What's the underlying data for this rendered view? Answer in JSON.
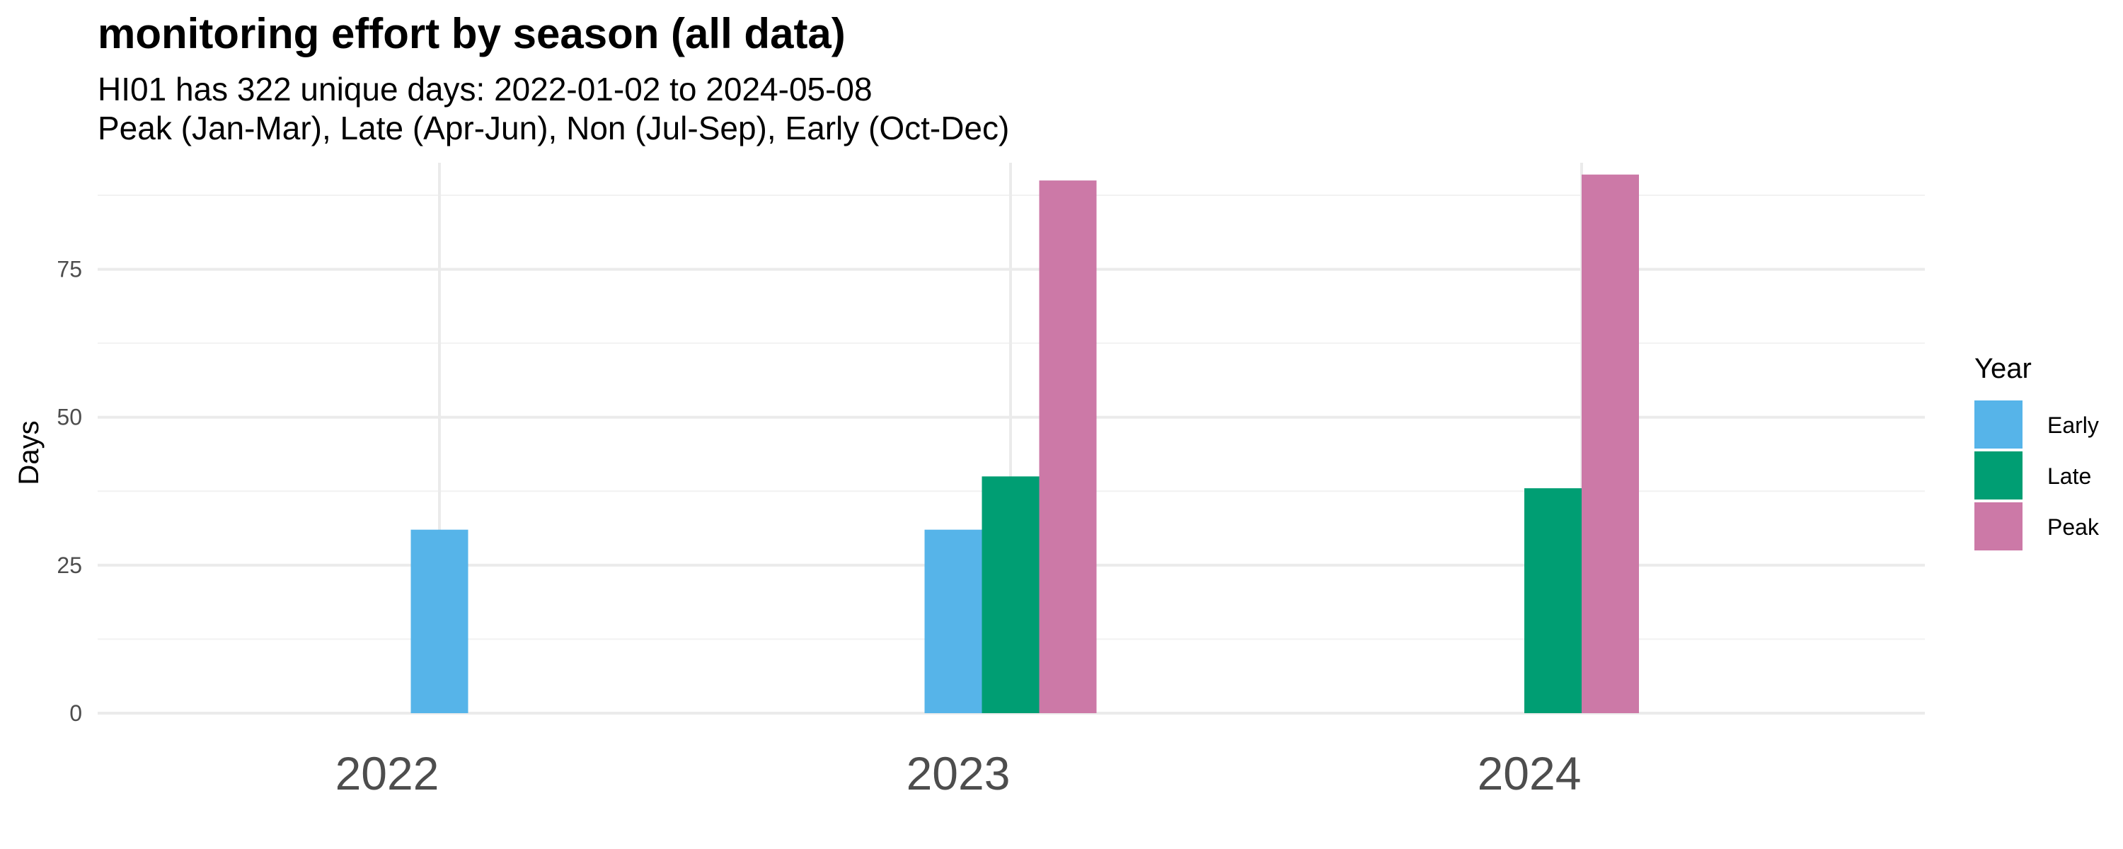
{
  "chart_data": {
    "type": "bar",
    "title": "monitoring effort by season (all data)",
    "subtitle_lines": [
      "HI01 has 322 unique days: 2022-01-02 to 2024-05-08",
      "Peak (Jan-Mar), Late (Apr-Jun), Non (Jul-Sep), Early (Oct-Dec)"
    ],
    "xlabel": "",
    "ylabel": "Days",
    "categories": [
      "2022",
      "2023",
      "2024"
    ],
    "series": [
      {
        "name": "Early",
        "color": "#56B4E9",
        "values": [
          31,
          31,
          null
        ]
      },
      {
        "name": "Late",
        "color": "#009E73",
        "values": [
          null,
          40,
          38
        ]
      },
      {
        "name": "Peak",
        "color": "#CC79A7",
        "values": [
          null,
          90,
          91
        ]
      }
    ],
    "ylim": [
      0,
      93
    ],
    "yticks": [
      0,
      25,
      50,
      75
    ],
    "grid": true,
    "legend": {
      "title": "Year",
      "position": "right"
    }
  }
}
